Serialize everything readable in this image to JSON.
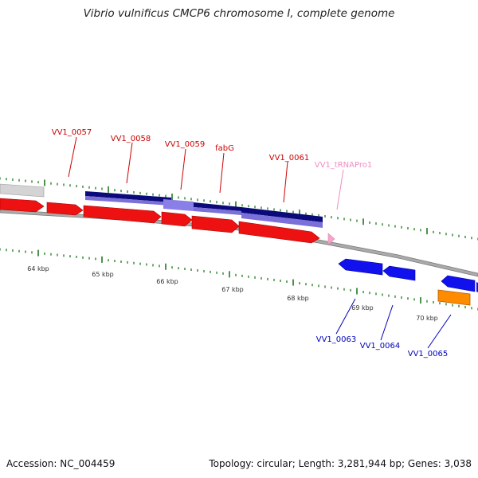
{
  "title": "Vibrio vulnificus CMCP6 chromosome I, complete genome",
  "accession": "Accession: NC_004459",
  "topology": "Topology: circular; Length: 3,281,944 bp; Genes: 3,038",
  "colors": {
    "forward_gene": "#ee1111",
    "reverse_gene": "#1111ee",
    "orange_feature": "#ff8c00",
    "trna": "#f4a7c8",
    "cds_dark": "#0a0a7a",
    "cds_light": "#7b6fd8",
    "tick": "#1f7a1f",
    "forward_label": "#cc0000",
    "reverse_label": "#0000bb",
    "trna_label": "#f08cc0"
  },
  "kbp_labels": [
    "64 kbp",
    "65 kbp",
    "66 kbp",
    "67 kbp",
    "68 kbp",
    "69 kbp",
    "70 kbp"
  ],
  "gene_labels_top": [
    {
      "text": "VV1_0057",
      "kind": "forward"
    },
    {
      "text": "VV1_0058",
      "kind": "forward"
    },
    {
      "text": "VV1_0059",
      "kind": "forward"
    },
    {
      "text": "fabG",
      "kind": "forward"
    },
    {
      "text": "VV1_0061",
      "kind": "forward"
    },
    {
      "text": "VV1_tRNAPro1",
      "kind": "trna"
    }
  ],
  "gene_labels_bottom": [
    {
      "text": "VV1_0063",
      "kind": "reverse"
    },
    {
      "text": "VV1_0064",
      "kind": "reverse"
    },
    {
      "text": "VV1_0065",
      "kind": "reverse"
    }
  ]
}
